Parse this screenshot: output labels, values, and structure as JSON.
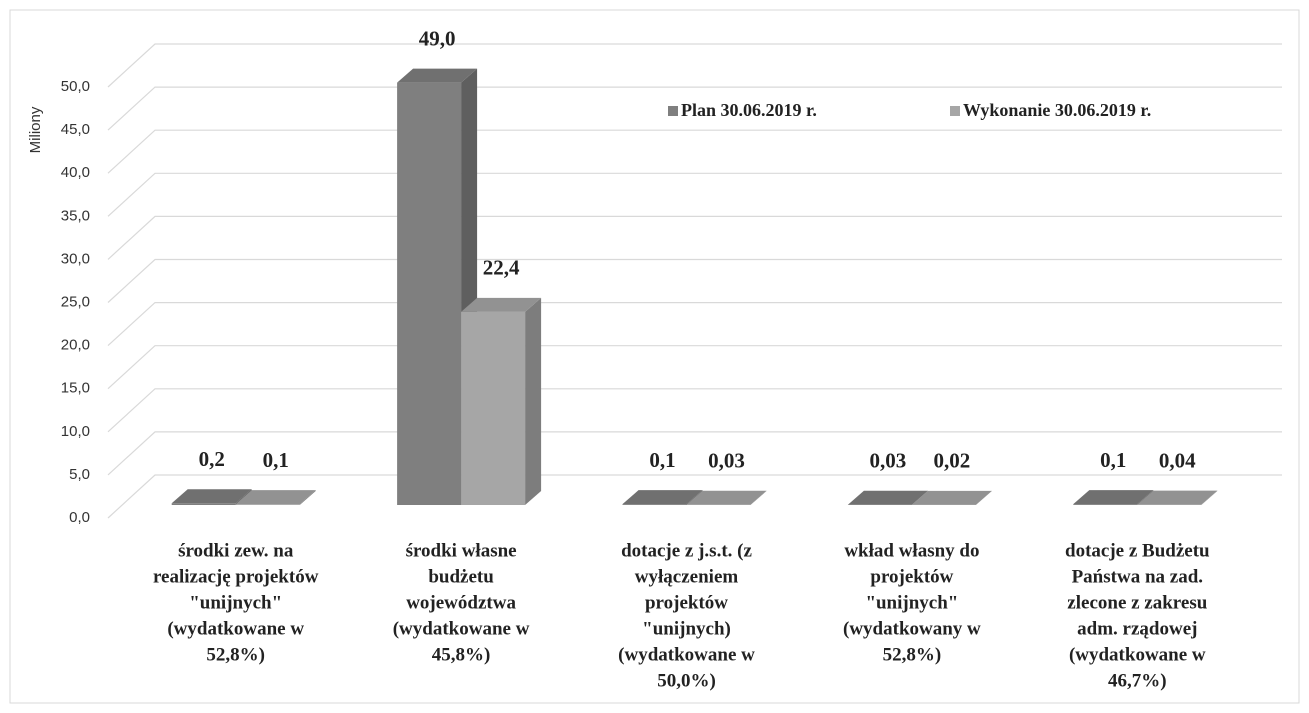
{
  "chart_data": {
    "type": "bar3d",
    "y_label": "Miliony",
    "categories": [
      [
        "środki zew. na",
        "realizację projektów",
        "\"unijnych\"",
        "(wydatkowane w",
        "52,8%)"
      ],
      [
        "środki własne",
        "budżetu",
        "województwa",
        "(wydatkowane w",
        "45,8%)"
      ],
      [
        "dotacje z j.s.t. (z",
        "wyłączeniem",
        "projektów",
        "\"unijnych)",
        "(wydatkowane w",
        "50,0%)"
      ],
      [
        "wkład własny do",
        "projektów",
        "\"unijnych\"",
        "(wydatkowany w",
        "52,8%)"
      ],
      [
        "dotacje z Budżetu",
        "Państwa na zad.",
        "zlecone z zakresu",
        "adm. rządowej",
        "(wydatkowane w",
        "46,7%)"
      ]
    ],
    "series": [
      {
        "name": "Plan 30.06.2019 r.",
        "color": "#7f7f7f",
        "values": [
          0.2,
          49.0,
          0.1,
          0.03,
          0.1
        ],
        "value_labels": [
          "0,2",
          "49,0",
          "0,1",
          "0,03",
          "0,1"
        ]
      },
      {
        "name": "Wykonanie 30.06.2019 r.",
        "color": "#a6a6a6",
        "values": [
          0.1,
          22.4,
          0.03,
          0.02,
          0.04
        ],
        "value_labels": [
          "0,1",
          "22,4",
          "0,03",
          "0,02",
          "0,04"
        ]
      }
    ],
    "ylim": [
      0,
      50
    ],
    "yticks": [
      {
        "value": 0,
        "label": "0,0"
      },
      {
        "value": 5,
        "label": "5,0"
      },
      {
        "value": 10,
        "label": "10,0"
      },
      {
        "value": 15,
        "label": "15,0"
      },
      {
        "value": 20,
        "label": "20,0"
      },
      {
        "value": 25,
        "label": "25,0"
      },
      {
        "value": 30,
        "label": "30,0"
      },
      {
        "value": 35,
        "label": "35,0"
      },
      {
        "value": 40,
        "label": "40,0"
      },
      {
        "value": 45,
        "label": "45,0"
      },
      {
        "value": 50,
        "label": "50,0"
      }
    ],
    "grid": true
  }
}
